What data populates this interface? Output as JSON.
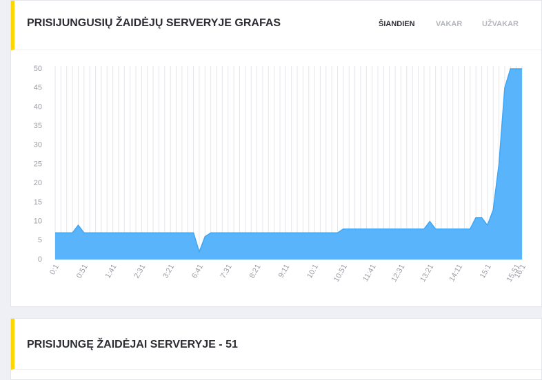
{
  "header": {
    "title": "PRISIJUNGUSIŲ ŽAIDĖJŲ SERVERYJE GRAFAS",
    "tabs": [
      "ŠIANDIEN",
      "VAKAR",
      "UŽVAKAR"
    ]
  },
  "chart_data": {
    "type": "area",
    "categories": [
      "0:1",
      null,
      null,
      null,
      null,
      "0:51",
      null,
      null,
      null,
      null,
      "1:41",
      null,
      null,
      null,
      null,
      "2:31",
      null,
      null,
      null,
      null,
      "3:21",
      null,
      null,
      null,
      null,
      "6:41",
      null,
      null,
      null,
      null,
      "7:31",
      null,
      null,
      null,
      null,
      "8:21",
      null,
      null,
      null,
      null,
      "9:11",
      null,
      null,
      null,
      null,
      "10:1",
      null,
      null,
      null,
      null,
      "10:51",
      null,
      null,
      null,
      null,
      "11:41",
      null,
      null,
      null,
      null,
      "12:31",
      null,
      null,
      null,
      null,
      "13:21",
      null,
      null,
      null,
      null,
      "14:11",
      null,
      null,
      null,
      null,
      "15:1",
      null,
      null,
      null,
      null,
      "15:51",
      "16:1"
    ],
    "values": [
      7,
      7,
      7,
      7,
      9,
      7,
      7,
      7,
      7,
      7,
      7,
      7,
      7,
      7,
      7,
      7,
      7,
      7,
      7,
      7,
      7,
      7,
      7,
      7,
      7,
      2,
      6,
      7,
      7,
      7,
      7,
      7,
      7,
      7,
      7,
      7,
      7,
      7,
      7,
      7,
      7,
      7,
      7,
      7,
      7,
      7,
      7,
      7,
      7,
      7,
      8,
      8,
      8,
      8,
      8,
      8,
      8,
      8,
      8,
      8,
      8,
      8,
      8,
      8,
      8,
      10,
      8,
      8,
      8,
      8,
      8,
      8,
      8,
      11,
      11,
      9,
      13,
      25,
      45,
      50,
      50,
      50
    ],
    "color": "#5ab4fb",
    "ylim": [
      0,
      50
    ],
    "yticks": [
      0,
      5,
      10,
      15,
      20,
      25,
      30,
      35,
      40,
      45,
      50
    ],
    "grid": true
  },
  "panel2": {
    "title": "PRISIJUNGĘ ŽAIDĖJAI SERVERYJE - 51"
  }
}
